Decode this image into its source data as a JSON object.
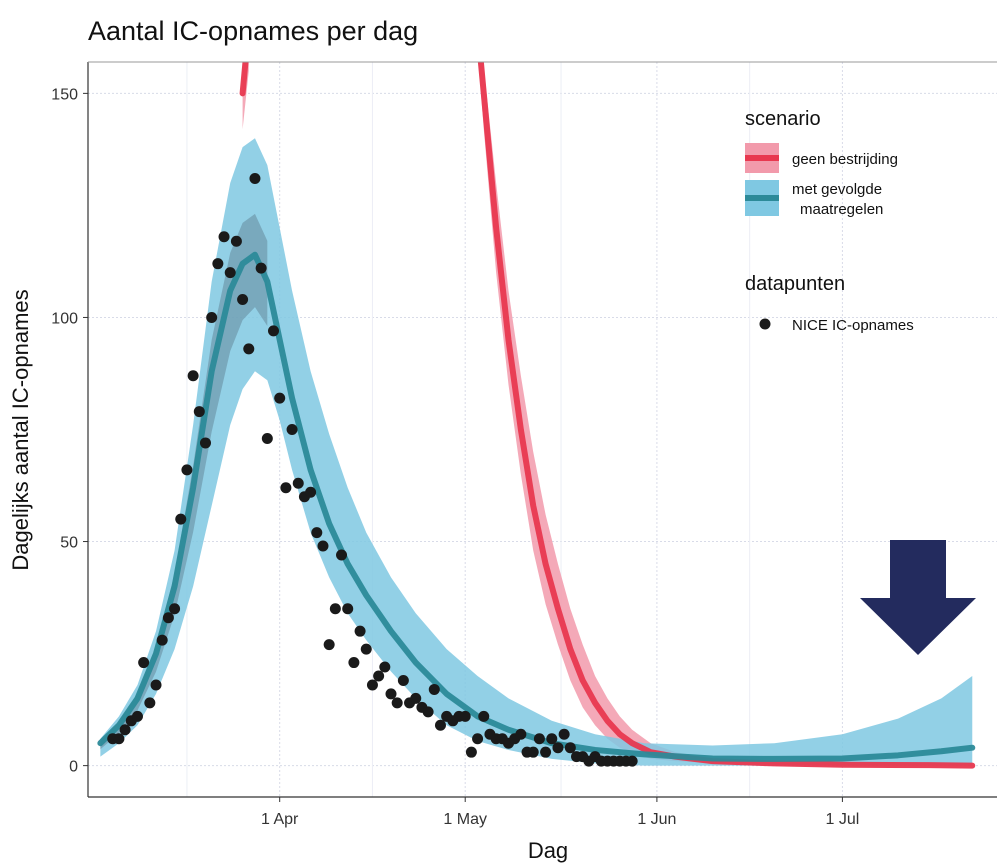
{
  "chart_data": {
    "type": "line",
    "title": "Aantal IC-opnames per dag",
    "xlabel": "Dag",
    "ylabel": "Dagelijks aantal IC-opnames",
    "ylim": [
      -7,
      157
    ],
    "xlim": [
      "2020-03-01",
      "2020-07-26"
    ],
    "x_ticks": [
      {
        "date": "2020-04-01",
        "label": "1 Apr"
      },
      {
        "date": "2020-05-01",
        "label": "1 May"
      },
      {
        "date": "2020-06-01",
        "label": "1 Jun"
      },
      {
        "date": "2020-07-01",
        "label": "1 Jul"
      }
    ],
    "y_ticks": [
      0,
      50,
      100,
      150
    ],
    "grid": true,
    "legend": {
      "placement": "right",
      "scenario_title": "scenario",
      "scenario_items": [
        {
          "label": "geen bestrijding",
          "color": "#e8384f",
          "band": "#f29aab"
        },
        {
          "label_line1": "met gevolgde",
          "label_line2": "maatregelen",
          "color": "#2c8a99",
          "band": "#7fc8e2"
        }
      ],
      "points_title": "datapunten",
      "points_label": "NICE IC-opnames"
    },
    "colors": {
      "red_line": "#e8384f",
      "red_band": "#f29aab",
      "teal_line": "#2c8a99",
      "blue_band": "#7fc8e2",
      "dark_band": "#5a7a8c",
      "points": "#1a1a1a",
      "arrow": "#232b5e",
      "grid": "#d8dbe8"
    },
    "series": [
      {
        "scenario": "geen bestrijding",
        "x": [
          "2020-03-26",
          "2020-03-27"
        ],
        "y": [
          150,
          165
        ],
        "upper": [
          158,
          175
        ],
        "lower": [
          142,
          155
        ]
      },
      {
        "scenario": "geen bestrijding",
        "x": [
          "2020-05-03",
          "2020-05-04",
          "2020-05-06",
          "2020-05-08",
          "2020-05-10",
          "2020-05-12",
          "2020-05-14",
          "2020-05-16",
          "2020-05-18",
          "2020-05-20",
          "2020-05-22",
          "2020-05-24",
          "2020-05-26",
          "2020-05-28",
          "2020-05-31",
          "2020-06-04",
          "2020-06-10",
          "2020-06-20",
          "2020-07-01",
          "2020-07-15",
          "2020-07-22"
        ],
        "y": [
          165,
          150,
          120,
          95,
          75,
          58,
          45,
          35,
          26,
          19,
          14,
          10,
          7,
          5,
          3,
          2,
          1,
          0.5,
          0.2,
          0.1,
          0
        ],
        "upper": [
          168,
          156,
          130,
          106,
          87,
          70,
          56,
          45,
          35,
          27,
          20,
          15,
          11,
          8,
          5,
          3,
          1.5,
          0.8,
          0.4,
          0.2,
          0.1
        ],
        "lower": [
          160,
          142,
          110,
          85,
          65,
          48,
          36,
          27,
          19,
          13,
          9,
          6,
          4,
          3,
          1.5,
          1,
          0.5,
          0.2,
          0,
          0,
          0
        ]
      },
      {
        "scenario": "met gevolgde maatregelen",
        "x": [
          "2020-03-03",
          "2020-03-06",
          "2020-03-09",
          "2020-03-12",
          "2020-03-15",
          "2020-03-18",
          "2020-03-21",
          "2020-03-24",
          "2020-03-26",
          "2020-03-28",
          "2020-03-30",
          "2020-04-01",
          "2020-04-03",
          "2020-04-06",
          "2020-04-09",
          "2020-04-12",
          "2020-04-15",
          "2020-04-19",
          "2020-04-23",
          "2020-04-28",
          "2020-05-03",
          "2020-05-08",
          "2020-05-15",
          "2020-05-22",
          "2020-05-30",
          "2020-06-10",
          "2020-06-20",
          "2020-07-01",
          "2020-07-10",
          "2020-07-17",
          "2020-07-22"
        ],
        "y": [
          5,
          9,
          15,
          25,
          40,
          62,
          88,
          106,
          112,
          114,
          108,
          95,
          82,
          66,
          54,
          45,
          38,
          30,
          23,
          16,
          11,
          8,
          5,
          3.5,
          2.5,
          1.6,
          1.5,
          1.6,
          2.3,
          3.2,
          4
        ],
        "upper": [
          6,
          11,
          18,
          30,
          48,
          76,
          108,
          130,
          138,
          140,
          134,
          120,
          106,
          88,
          74,
          62,
          52,
          42,
          34,
          26,
          20,
          15,
          10,
          7,
          5,
          4.5,
          5,
          7,
          10.5,
          15,
          20
        ],
        "lower": [
          2,
          5,
          9,
          16,
          26,
          40,
          58,
          76,
          84,
          88,
          86,
          77,
          66,
          52,
          42,
          34,
          28,
          21,
          15,
          9,
          5.5,
          3.5,
          1.5,
          0.5,
          0,
          0,
          0,
          0,
          0,
          0,
          0
        ]
      }
    ],
    "points": {
      "label": "NICE IC-opnames",
      "x": [
        "2020-03-05",
        "2020-03-06",
        "2020-03-07",
        "2020-03-08",
        "2020-03-09",
        "2020-03-10",
        "2020-03-11",
        "2020-03-12",
        "2020-03-13",
        "2020-03-14",
        "2020-03-15",
        "2020-03-16",
        "2020-03-17",
        "2020-03-18",
        "2020-03-19",
        "2020-03-20",
        "2020-03-21",
        "2020-03-22",
        "2020-03-23",
        "2020-03-24",
        "2020-03-25",
        "2020-03-26",
        "2020-03-27",
        "2020-03-28",
        "2020-03-29",
        "2020-03-30",
        "2020-03-31",
        "2020-04-01",
        "2020-04-02",
        "2020-04-03",
        "2020-04-04",
        "2020-04-05",
        "2020-04-06",
        "2020-04-07",
        "2020-04-08",
        "2020-04-09",
        "2020-04-10",
        "2020-04-11",
        "2020-04-12",
        "2020-04-13",
        "2020-04-14",
        "2020-04-15",
        "2020-04-16",
        "2020-04-17",
        "2020-04-18",
        "2020-04-19",
        "2020-04-20",
        "2020-04-21",
        "2020-04-22",
        "2020-04-23",
        "2020-04-24",
        "2020-04-25",
        "2020-04-26",
        "2020-04-27",
        "2020-04-28",
        "2020-04-29",
        "2020-04-30",
        "2020-05-01",
        "2020-05-02",
        "2020-05-03",
        "2020-05-04",
        "2020-05-05",
        "2020-05-06",
        "2020-05-07",
        "2020-05-08",
        "2020-05-09",
        "2020-05-10",
        "2020-05-11",
        "2020-05-12",
        "2020-05-13",
        "2020-05-14",
        "2020-05-15",
        "2020-05-16",
        "2020-05-17",
        "2020-05-18",
        "2020-05-19",
        "2020-05-20",
        "2020-05-21",
        "2020-05-22",
        "2020-05-23",
        "2020-05-24",
        "2020-05-25",
        "2020-05-26",
        "2020-05-27",
        "2020-05-28"
      ],
      "y": [
        6,
        6,
        8,
        10,
        11,
        23,
        14,
        18,
        28,
        33,
        35,
        55,
        66,
        87,
        79,
        72,
        100,
        112,
        118,
        110,
        117,
        104,
        93,
        131,
        111,
        73,
        97,
        82,
        62,
        75,
        63,
        60,
        61,
        52,
        49,
        27,
        35,
        47,
        35,
        23,
        30,
        26,
        18,
        20,
        22,
        16,
        14,
        19,
        14,
        15,
        13,
        12,
        17,
        9,
        11,
        10,
        11,
        11,
        3,
        6,
        11,
        7,
        6,
        6,
        5,
        6,
        7,
        3,
        3,
        6,
        3,
        6,
        4,
        7,
        4,
        2,
        2,
        1,
        2,
        1,
        1,
        1,
        1,
        1,
        1
      ]
    }
  }
}
